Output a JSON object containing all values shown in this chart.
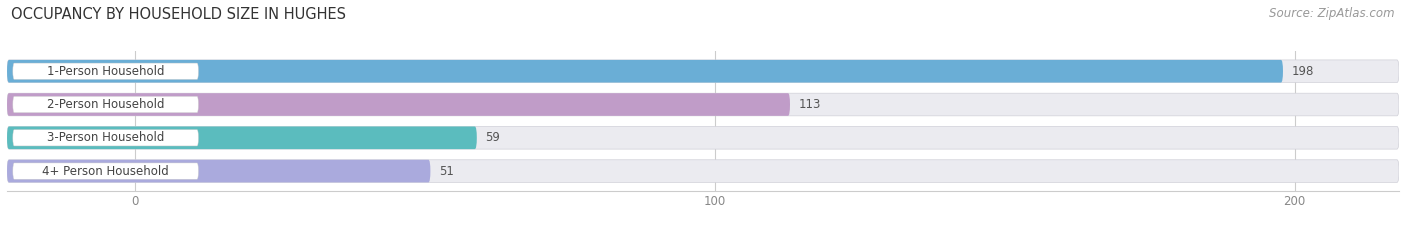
{
  "title": "OCCUPANCY BY HOUSEHOLD SIZE IN HUGHES",
  "source": "Source: ZipAtlas.com",
  "categories": [
    "1-Person Household",
    "2-Person Household",
    "3-Person Household",
    "4+ Person Household"
  ],
  "values": [
    198,
    113,
    59,
    51
  ],
  "bar_colors": [
    "#6aaed6",
    "#c09cc8",
    "#5bbcbe",
    "#aaaadd"
  ],
  "bar_bg_color": "#e8eaf0",
  "background_color": "#ffffff",
  "xlim": [
    -22,
    218
  ],
  "xticks": [
    0,
    100,
    200
  ],
  "title_fontsize": 10.5,
  "source_fontsize": 8.5,
  "label_fontsize": 8.5,
  "value_fontsize": 8.5,
  "bar_height": 0.68
}
